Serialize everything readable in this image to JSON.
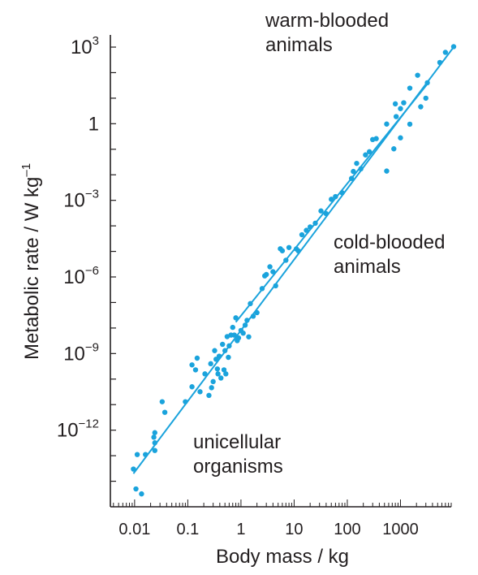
{
  "chart_data": {
    "type": "scatter",
    "title": "",
    "xlabel": "Body mass / kg",
    "ylabel": {
      "main": "Metabolic rate / W kg",
      "sup": "–1"
    },
    "x_scale": "log",
    "y_scale": "log",
    "xlim": [
      0.0035,
      9000
    ],
    "ylim": [
      1e-15,
      3000
    ],
    "x_ticks": [
      {
        "value": 0.01,
        "label": "0.01"
      },
      {
        "value": 0.1,
        "label": "0.1"
      },
      {
        "value": 1,
        "label": "1"
      },
      {
        "value": 10,
        "label": "10"
      },
      {
        "value": 100,
        "label": "100"
      },
      {
        "value": 1000,
        "label": "1000"
      }
    ],
    "y_ticks": [
      {
        "value": 1000,
        "base": "10",
        "exp": "3"
      },
      {
        "value": 1,
        "base": "1",
        "exp": ""
      },
      {
        "value": 0.001,
        "base": "10",
        "exp": "−3"
      },
      {
        "value": 1e-06,
        "base": "10",
        "exp": "−6"
      },
      {
        "value": 1e-09,
        "base": "10",
        "exp": "−9"
      },
      {
        "value": 1e-12,
        "base": "10",
        "exp": "−12"
      }
    ],
    "grid": false,
    "annotations": [
      {
        "lines": [
          "warm-blooded",
          "animals"
        ]
      },
      {
        "lines": [
          "cold-blooded",
          "animals"
        ]
      },
      {
        "lines": [
          "unicellular",
          "organisms"
        ]
      }
    ],
    "color": "#1aa3dc",
    "series": [
      {
        "points": [
          [
            130,
            0.0135
          ],
          [
            150,
            0.028
          ],
          [
            220,
            0.06
          ],
          [
            300,
            0.24
          ],
          [
            550,
            0.97
          ],
          [
            800,
            6.0
          ],
          [
            830,
            1.9
          ],
          [
            1000,
            3.9
          ],
          [
            1150,
            6.6
          ],
          [
            1500,
            24.7
          ],
          [
            2100,
            79.0
          ],
          [
            3200,
            40.2
          ],
          [
            5500,
            250.0
          ],
          [
            7000,
            622.0
          ],
          [
            10000,
            1040.0
          ]
        ]
      },
      {
        "points": [
          [
            0.0095,
            3e-14
          ],
          [
            0.0106,
            5e-15
          ],
          [
            0.0135,
            3.2e-15
          ],
          [
            0.0112,
            1.11e-13
          ],
          [
            0.016,
            1.11e-13
          ],
          [
            0.024,
            1.6e-13
          ],
          [
            0.024,
            3.2e-13
          ],
          [
            0.024,
            8e-13
          ],
          [
            0.023,
            5.3e-13
          ],
          [
            0.037,
            5e-12
          ],
          [
            0.033,
            1.3e-11
          ],
          [
            0.09,
            1.3e-11
          ],
          [
            0.12,
            5e-11
          ],
          [
            0.12,
            3.6e-10
          ],
          [
            0.14,
            2.3e-10
          ],
          [
            0.15,
            6.6e-10
          ],
          [
            0.17,
            3.2e-11
          ],
          [
            0.21,
            1.6e-10
          ],
          [
            0.25,
            2.3e-11
          ],
          [
            0.27,
            4e-10
          ],
          [
            0.28,
            4.6e-11
          ],
          [
            0.3,
            8e-11
          ],
          [
            0.32,
            1.3e-09
          ],
          [
            0.34,
            6e-10
          ],
          [
            0.36,
            2.5e-10
          ],
          [
            0.37,
            1.6e-10
          ],
          [
            0.39,
            7.9e-10
          ],
          [
            0.42,
            1.1e-10
          ],
          [
            0.45,
            2.3e-09
          ],
          [
            0.48,
            2.3e-10
          ],
          [
            0.5,
            1.3e-09
          ],
          [
            0.52,
            1.6e-10
          ],
          [
            0.55,
            4.6e-09
          ],
          [
            0.58,
            7.1e-10
          ],
          [
            0.6,
            2e-09
          ],
          [
            0.65,
            5.3e-09
          ],
          [
            0.7,
            1.06e-08
          ],
          [
            0.75,
            5.3e-09
          ],
          [
            0.8,
            2.5e-08
          ],
          [
            0.85,
            3.2e-09
          ],
          [
            0.9,
            4.1e-09
          ],
          [
            1.0,
            8e-09
          ],
          [
            1.1,
            6.3e-09
          ],
          [
            1.2,
            1.3e-08
          ],
          [
            1.3,
            2e-08
          ],
          [
            1.4,
            4.5e-09
          ],
          [
            1.5,
            9e-08
          ],
          [
            1.7,
            2.9e-08
          ],
          [
            2.0,
            4e-08
          ],
          [
            2.5,
            3.5e-07
          ],
          [
            2.8,
            1.1e-06
          ],
          [
            3.0,
            1.25e-06
          ],
          [
            3.5,
            2.5e-06
          ],
          [
            4.0,
            1.6e-06
          ],
          [
            4.5,
            4.5e-07
          ],
          [
            5.5,
            1.27e-05
          ],
          [
            6.0,
            1.06e-05
          ],
          [
            7.0,
            4.5e-06
          ],
          [
            8.0,
            1.42e-05
          ],
          [
            11,
            1.25e-05
          ],
          [
            12,
            1.05e-05
          ],
          [
            14,
            4.5e-05
          ],
          [
            17,
            6.7e-05
          ],
          [
            20,
            9.1e-05
          ],
          [
            25,
            0.000127
          ],
          [
            32,
            0.000385
          ],
          [
            40,
            0.0003
          ],
          [
            50,
            0.0011
          ],
          [
            60,
            0.0014
          ],
          [
            80,
            0.00198
          ],
          [
            120,
            0.0072
          ],
          [
            180,
            0.0172
          ],
          [
            260,
            0.08
          ],
          [
            350,
            0.26
          ],
          [
            550,
            0.014
          ],
          [
            750,
            0.104
          ],
          [
            1000,
            0.28
          ],
          [
            1500,
            0.96
          ],
          [
            2400,
            4.6
          ],
          [
            3000,
            10.0
          ]
        ]
      }
    ],
    "fit_lines": [
      {
        "from": [
          0.0095,
          2e-14
        ],
        "to": [
          10000,
          1000.0
        ]
      },
      {
        "from": [
          0.8,
          1.7e-08
        ],
        "to": [
          3100,
          33.0
        ]
      }
    ]
  }
}
